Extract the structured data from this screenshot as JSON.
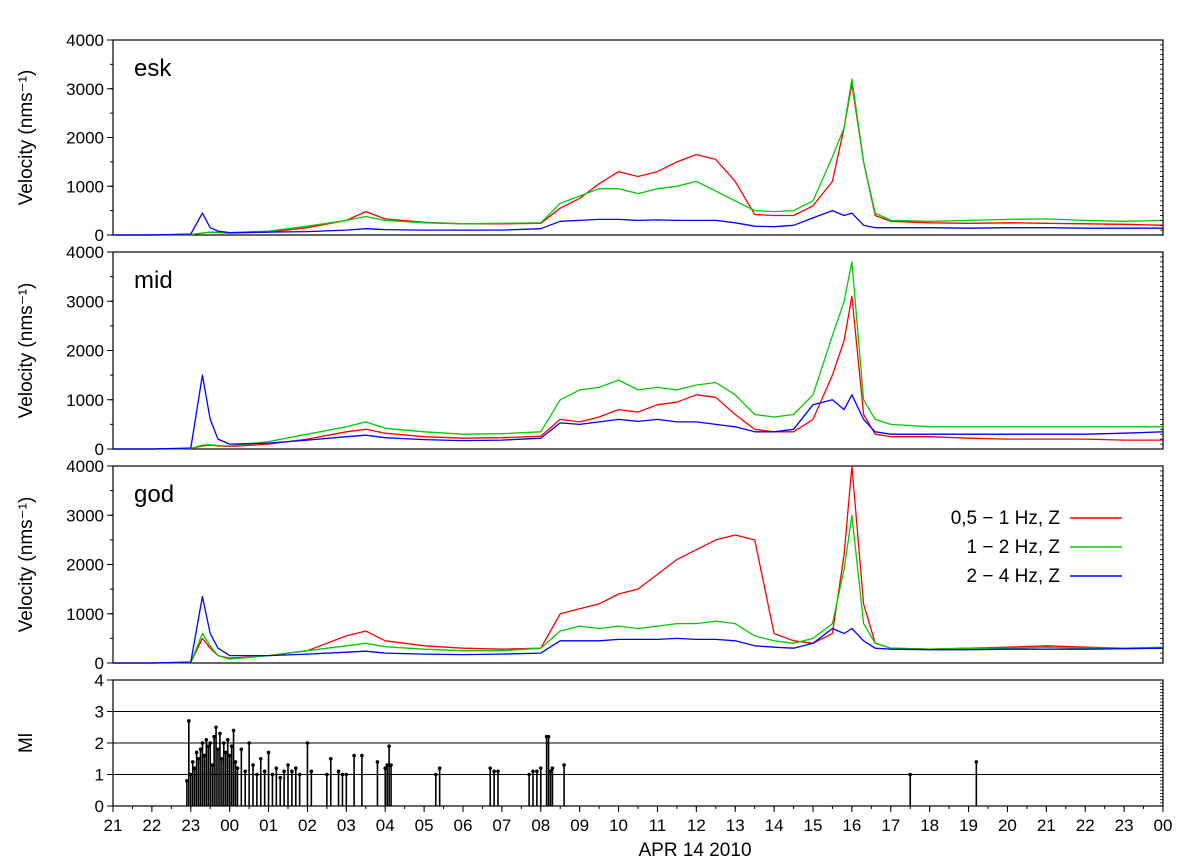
{
  "x_axis": {
    "label": "APR 14 2010",
    "tick_labels": [
      "21",
      "22",
      "23",
      "00",
      "01",
      "02",
      "03",
      "04",
      "05",
      "06",
      "07",
      "08",
      "09",
      "10",
      "11",
      "12",
      "13",
      "14",
      "15",
      "16",
      "17",
      "18",
      "19",
      "20",
      "21",
      "22",
      "23",
      "00"
    ],
    "range_hours": [
      21,
      48
    ]
  },
  "legend": {
    "placement": "inside-right of bottom velocity panel (god)",
    "entries": [
      {
        "label": "0,5 − 1 Hz, Z",
        "color": "#ff0000"
      },
      {
        "label": "1 − 2 Hz, Z",
        "color": "#00cc00"
      },
      {
        "label": "2 − 4 Hz, Z",
        "color": "#0000ff"
      }
    ]
  },
  "chart_data": [
    {
      "type": "line",
      "panel_label": "esk",
      "ylabel": "Velocity (nms⁻¹)",
      "ylim": [
        0,
        4000
      ],
      "yticks": [
        0,
        1000,
        2000,
        3000,
        4000
      ],
      "x": [
        21,
        22,
        23,
        23.3,
        23.5,
        23.7,
        24,
        25,
        26,
        27,
        27.5,
        28,
        29,
        30,
        31,
        32,
        32.5,
        33,
        33.5,
        34,
        34.5,
        35,
        35.5,
        36,
        36.5,
        37,
        37.5,
        38,
        38.5,
        39,
        39.5,
        39.8,
        40,
        40.3,
        40.6,
        41,
        42,
        43,
        44,
        45,
        46,
        47,
        48
      ],
      "series": [
        {
          "name": "0,5 − 1 Hz, Z",
          "color": "#ff0000",
          "values": [
            0,
            0,
            10,
            40,
            60,
            50,
            40,
            60,
            150,
            300,
            480,
            330,
            260,
            230,
            230,
            240,
            550,
            750,
            1050,
            1300,
            1200,
            1300,
            1500,
            1650,
            1550,
            1100,
            420,
            400,
            400,
            600,
            1100,
            2200,
            3100,
            1500,
            400,
            280,
            250,
            240,
            250,
            240,
            230,
            220,
            200
          ]
        },
        {
          "name": "1 − 2 Hz, Z",
          "color": "#00cc00",
          "values": [
            0,
            0,
            10,
            40,
            60,
            60,
            50,
            80,
            180,
            300,
            380,
            300,
            250,
            230,
            240,
            250,
            650,
            800,
            950,
            950,
            850,
            950,
            1000,
            1100,
            900,
            700,
            500,
            480,
            500,
            700,
            1600,
            2200,
            3200,
            1500,
            450,
            300,
            280,
            300,
            320,
            330,
            300,
            280,
            300
          ]
        },
        {
          "name": "2 − 4 Hz, Z",
          "color": "#0000ff",
          "values": [
            0,
            0,
            20,
            450,
            150,
            80,
            50,
            60,
            70,
            100,
            130,
            110,
            100,
            100,
            100,
            130,
            280,
            300,
            320,
            320,
            300,
            310,
            300,
            300,
            300,
            250,
            180,
            170,
            200,
            350,
            500,
            400,
            450,
            200,
            150,
            150,
            150,
            140,
            150,
            150,
            140,
            140,
            140
          ]
        }
      ]
    },
    {
      "type": "line",
      "panel_label": "mid",
      "ylabel": "Velocity (nms⁻¹)",
      "ylim": [
        0,
        4000
      ],
      "yticks": [
        0,
        1000,
        2000,
        3000,
        4000
      ],
      "x": [
        21,
        22,
        23,
        23.3,
        23.5,
        23.7,
        24,
        25,
        26,
        27,
        27.5,
        28,
        29,
        30,
        31,
        32,
        32.5,
        33,
        33.5,
        34,
        34.5,
        35,
        35.5,
        36,
        36.5,
        37,
        37.5,
        38,
        38.5,
        39,
        39.5,
        39.8,
        40,
        40.3,
        40.6,
        41,
        42,
        43,
        44,
        45,
        46,
        47,
        48
      ],
      "series": [
        {
          "name": "0,5 − 1 Hz, Z",
          "color": "#ff0000",
          "values": [
            0,
            0,
            10,
            60,
            80,
            60,
            50,
            100,
            200,
            350,
            400,
            320,
            250,
            220,
            230,
            260,
            600,
            550,
            650,
            800,
            750,
            900,
            950,
            1100,
            1050,
            700,
            400,
            350,
            350,
            600,
            1500,
            2200,
            3100,
            700,
            300,
            250,
            250,
            220,
            200,
            200,
            200,
            180,
            180
          ]
        },
        {
          "name": "1 − 2 Hz, Z",
          "color": "#00cc00",
          "values": [
            0,
            0,
            10,
            80,
            90,
            70,
            60,
            150,
            300,
            450,
            550,
            420,
            350,
            300,
            310,
            350,
            1000,
            1200,
            1250,
            1400,
            1200,
            1250,
            1200,
            1300,
            1350,
            1100,
            700,
            650,
            700,
            1100,
            2300,
            3000,
            3800,
            1000,
            600,
            500,
            450,
            450,
            450,
            450,
            450,
            450,
            450
          ]
        },
        {
          "name": "2 − 4 Hz, Z",
          "color": "#0000ff",
          "values": [
            0,
            0,
            20,
            1500,
            600,
            200,
            100,
            120,
            180,
            250,
            280,
            230,
            190,
            170,
            180,
            220,
            530,
            500,
            550,
            600,
            560,
            600,
            550,
            550,
            500,
            450,
            350,
            350,
            400,
            900,
            1000,
            800,
            1100,
            600,
            350,
            300,
            300,
            300,
            300,
            300,
            300,
            320,
            350
          ]
        }
      ]
    },
    {
      "type": "line",
      "panel_label": "god",
      "ylabel": "Velocity (nms⁻¹)",
      "ylim": [
        0,
        4000
      ],
      "yticks": [
        0,
        1000,
        2000,
        3000,
        4000
      ],
      "x": [
        21,
        22,
        23,
        23.3,
        23.5,
        23.7,
        24,
        25,
        26,
        27,
        27.5,
        28,
        29,
        30,
        31,
        32,
        32.5,
        33,
        33.5,
        34,
        34.5,
        35,
        35.5,
        36,
        36.5,
        37,
        37.5,
        38,
        38.5,
        39,
        39.5,
        39.8,
        40,
        40.3,
        40.6,
        41,
        42,
        43,
        44,
        45,
        46,
        47,
        48
      ],
      "series": [
        {
          "name": "0,5 − 1 Hz, Z",
          "color": "#ff0000",
          "values": [
            0,
            0,
            10,
            500,
            300,
            150,
            100,
            150,
            250,
            550,
            650,
            450,
            350,
            300,
            280,
            300,
            1000,
            1100,
            1200,
            1400,
            1500,
            1800,
            2100,
            2300,
            2500,
            2600,
            2500,
            600,
            450,
            400,
            600,
            2200,
            4000,
            1200,
            400,
            300,
            280,
            300,
            320,
            350,
            320,
            300,
            300
          ]
        },
        {
          "name": "1 − 2 Hz, Z",
          "color": "#00cc00",
          "values": [
            0,
            0,
            10,
            600,
            350,
            150,
            80,
            150,
            250,
            350,
            400,
            330,
            280,
            250,
            250,
            300,
            650,
            750,
            700,
            750,
            700,
            750,
            800,
            800,
            850,
            800,
            550,
            450,
            400,
            500,
            800,
            1900,
            3000,
            800,
            400,
            300,
            280,
            300,
            300,
            320,
            300,
            300,
            320
          ]
        },
        {
          "name": "2 − 4 Hz, Z",
          "color": "#0000ff",
          "values": [
            0,
            0,
            20,
            1350,
            600,
            300,
            150,
            150,
            180,
            220,
            240,
            200,
            180,
            170,
            180,
            200,
            450,
            450,
            450,
            480,
            480,
            480,
            500,
            480,
            480,
            450,
            350,
            320,
            300,
            400,
            700,
            600,
            700,
            450,
            300,
            280,
            270,
            270,
            280,
            280,
            280,
            290,
            300
          ]
        }
      ]
    },
    {
      "type": "bar",
      "panel_label": "",
      "ylabel": "Ml",
      "ylim": [
        0,
        4
      ],
      "yticks": [
        0,
        1,
        2,
        3,
        4
      ],
      "grid": "horizontal",
      "events": [
        {
          "x": 22.9,
          "m": 0.8
        },
        {
          "x": 22.95,
          "m": 2.7
        },
        {
          "x": 23.0,
          "m": 1.0
        },
        {
          "x": 23.05,
          "m": 1.4
        },
        {
          "x": 23.1,
          "m": 1.2
        },
        {
          "x": 23.15,
          "m": 1.7
        },
        {
          "x": 23.2,
          "m": 1.5
        },
        {
          "x": 23.25,
          "m": 1.8
        },
        {
          "x": 23.3,
          "m": 2.0
        },
        {
          "x": 23.35,
          "m": 1.6
        },
        {
          "x": 23.4,
          "m": 2.1
        },
        {
          "x": 23.45,
          "m": 1.9
        },
        {
          "x": 23.5,
          "m": 2.0
        },
        {
          "x": 23.55,
          "m": 1.3
        },
        {
          "x": 23.6,
          "m": 2.2
        },
        {
          "x": 23.65,
          "m": 2.5
        },
        {
          "x": 23.7,
          "m": 1.8
        },
        {
          "x": 23.75,
          "m": 2.3
        },
        {
          "x": 23.8,
          "m": 1.5
        },
        {
          "x": 23.85,
          "m": 2.0
        },
        {
          "x": 23.9,
          "m": 1.7
        },
        {
          "x": 23.95,
          "m": 2.1
        },
        {
          "x": 24.0,
          "m": 1.6
        },
        {
          "x": 24.05,
          "m": 1.9
        },
        {
          "x": 24.1,
          "m": 2.4
        },
        {
          "x": 24.15,
          "m": 1.4
        },
        {
          "x": 24.2,
          "m": 1.2
        },
        {
          "x": 24.3,
          "m": 1.8
        },
        {
          "x": 24.4,
          "m": 1.1
        },
        {
          "x": 24.5,
          "m": 2.0
        },
        {
          "x": 24.6,
          "m": 1.3
        },
        {
          "x": 24.7,
          "m": 1.0
        },
        {
          "x": 24.8,
          "m": 1.5
        },
        {
          "x": 24.9,
          "m": 1.1
        },
        {
          "x": 25.0,
          "m": 1.7
        },
        {
          "x": 25.1,
          "m": 1.0
        },
        {
          "x": 25.2,
          "m": 1.2
        },
        {
          "x": 25.3,
          "m": 0.9
        },
        {
          "x": 25.4,
          "m": 1.1
        },
        {
          "x": 25.5,
          "m": 1.3
        },
        {
          "x": 25.6,
          "m": 1.1
        },
        {
          "x": 25.7,
          "m": 1.2
        },
        {
          "x": 25.8,
          "m": 1.0
        },
        {
          "x": 26.0,
          "m": 2.0
        },
        {
          "x": 26.1,
          "m": 1.1
        },
        {
          "x": 26.5,
          "m": 1.0
        },
        {
          "x": 26.6,
          "m": 1.5
        },
        {
          "x": 26.8,
          "m": 1.1
        },
        {
          "x": 26.9,
          "m": 1.0
        },
        {
          "x": 27.0,
          "m": 1.0
        },
        {
          "x": 27.2,
          "m": 1.6
        },
        {
          "x": 27.4,
          "m": 1.6
        },
        {
          "x": 27.8,
          "m": 1.4
        },
        {
          "x": 28.0,
          "m": 1.2
        },
        {
          "x": 28.05,
          "m": 1.3
        },
        {
          "x": 28.1,
          "m": 1.9
        },
        {
          "x": 28.15,
          "m": 1.3
        },
        {
          "x": 29.3,
          "m": 1.0
        },
        {
          "x": 29.4,
          "m": 1.2
        },
        {
          "x": 30.7,
          "m": 1.2
        },
        {
          "x": 30.8,
          "m": 1.1
        },
        {
          "x": 30.9,
          "m": 1.1
        },
        {
          "x": 31.7,
          "m": 1.0
        },
        {
          "x": 31.8,
          "m": 1.1
        },
        {
          "x": 31.9,
          "m": 1.1
        },
        {
          "x": 32.0,
          "m": 1.2
        },
        {
          "x": 32.15,
          "m": 2.2
        },
        {
          "x": 32.2,
          "m": 2.2
        },
        {
          "x": 32.25,
          "m": 1.1
        },
        {
          "x": 32.3,
          "m": 1.2
        },
        {
          "x": 32.6,
          "m": 1.3
        },
        {
          "x": 41.5,
          "m": 1.0
        },
        {
          "x": 43.2,
          "m": 1.4
        }
      ]
    }
  ]
}
